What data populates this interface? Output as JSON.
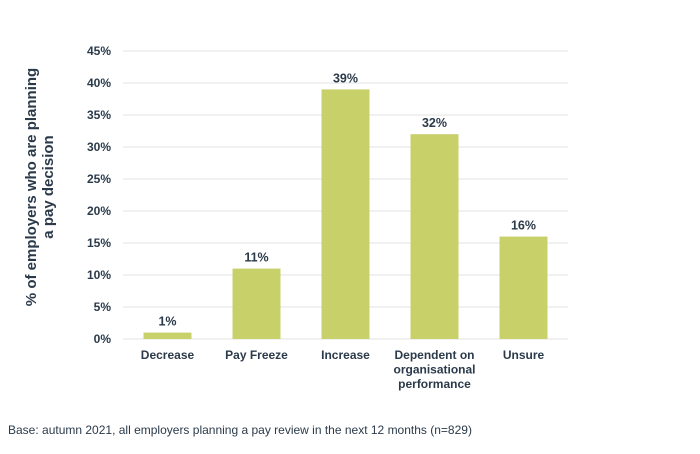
{
  "chart_data": {
    "type": "bar",
    "categories": [
      "Decrease",
      "Pay Freeze",
      "Increase",
      "Dependent on organisational performance",
      "Unsure"
    ],
    "category_lines": [
      [
        "Decrease"
      ],
      [
        "Pay Freeze"
      ],
      [
        "Increase"
      ],
      [
        "Dependent on",
        "organisational",
        "performance"
      ],
      [
        "Unsure"
      ]
    ],
    "values": [
      1,
      11,
      39,
      32,
      16
    ],
    "data_labels": [
      "1%",
      "11%",
      "39%",
      "32%",
      "16%"
    ],
    "ylabel_lines": [
      "% of employers who are planning",
      "a pay decision"
    ],
    "ylim": [
      0,
      45
    ],
    "yticks": [
      0,
      5,
      10,
      15,
      20,
      25,
      30,
      35,
      40,
      45
    ],
    "ytick_labels": [
      "0%",
      "5%",
      "10%",
      "15%",
      "20%",
      "25%",
      "30%",
      "35%",
      "40%",
      "45%"
    ],
    "grid": true,
    "bar_color": "#c8d06a",
    "grid_color": "#e3e3e3",
    "text_color": "#2b3a4a"
  },
  "footnote": "Base: autumn 2021, all employers planning a pay review in the next 12 months (n=829)"
}
